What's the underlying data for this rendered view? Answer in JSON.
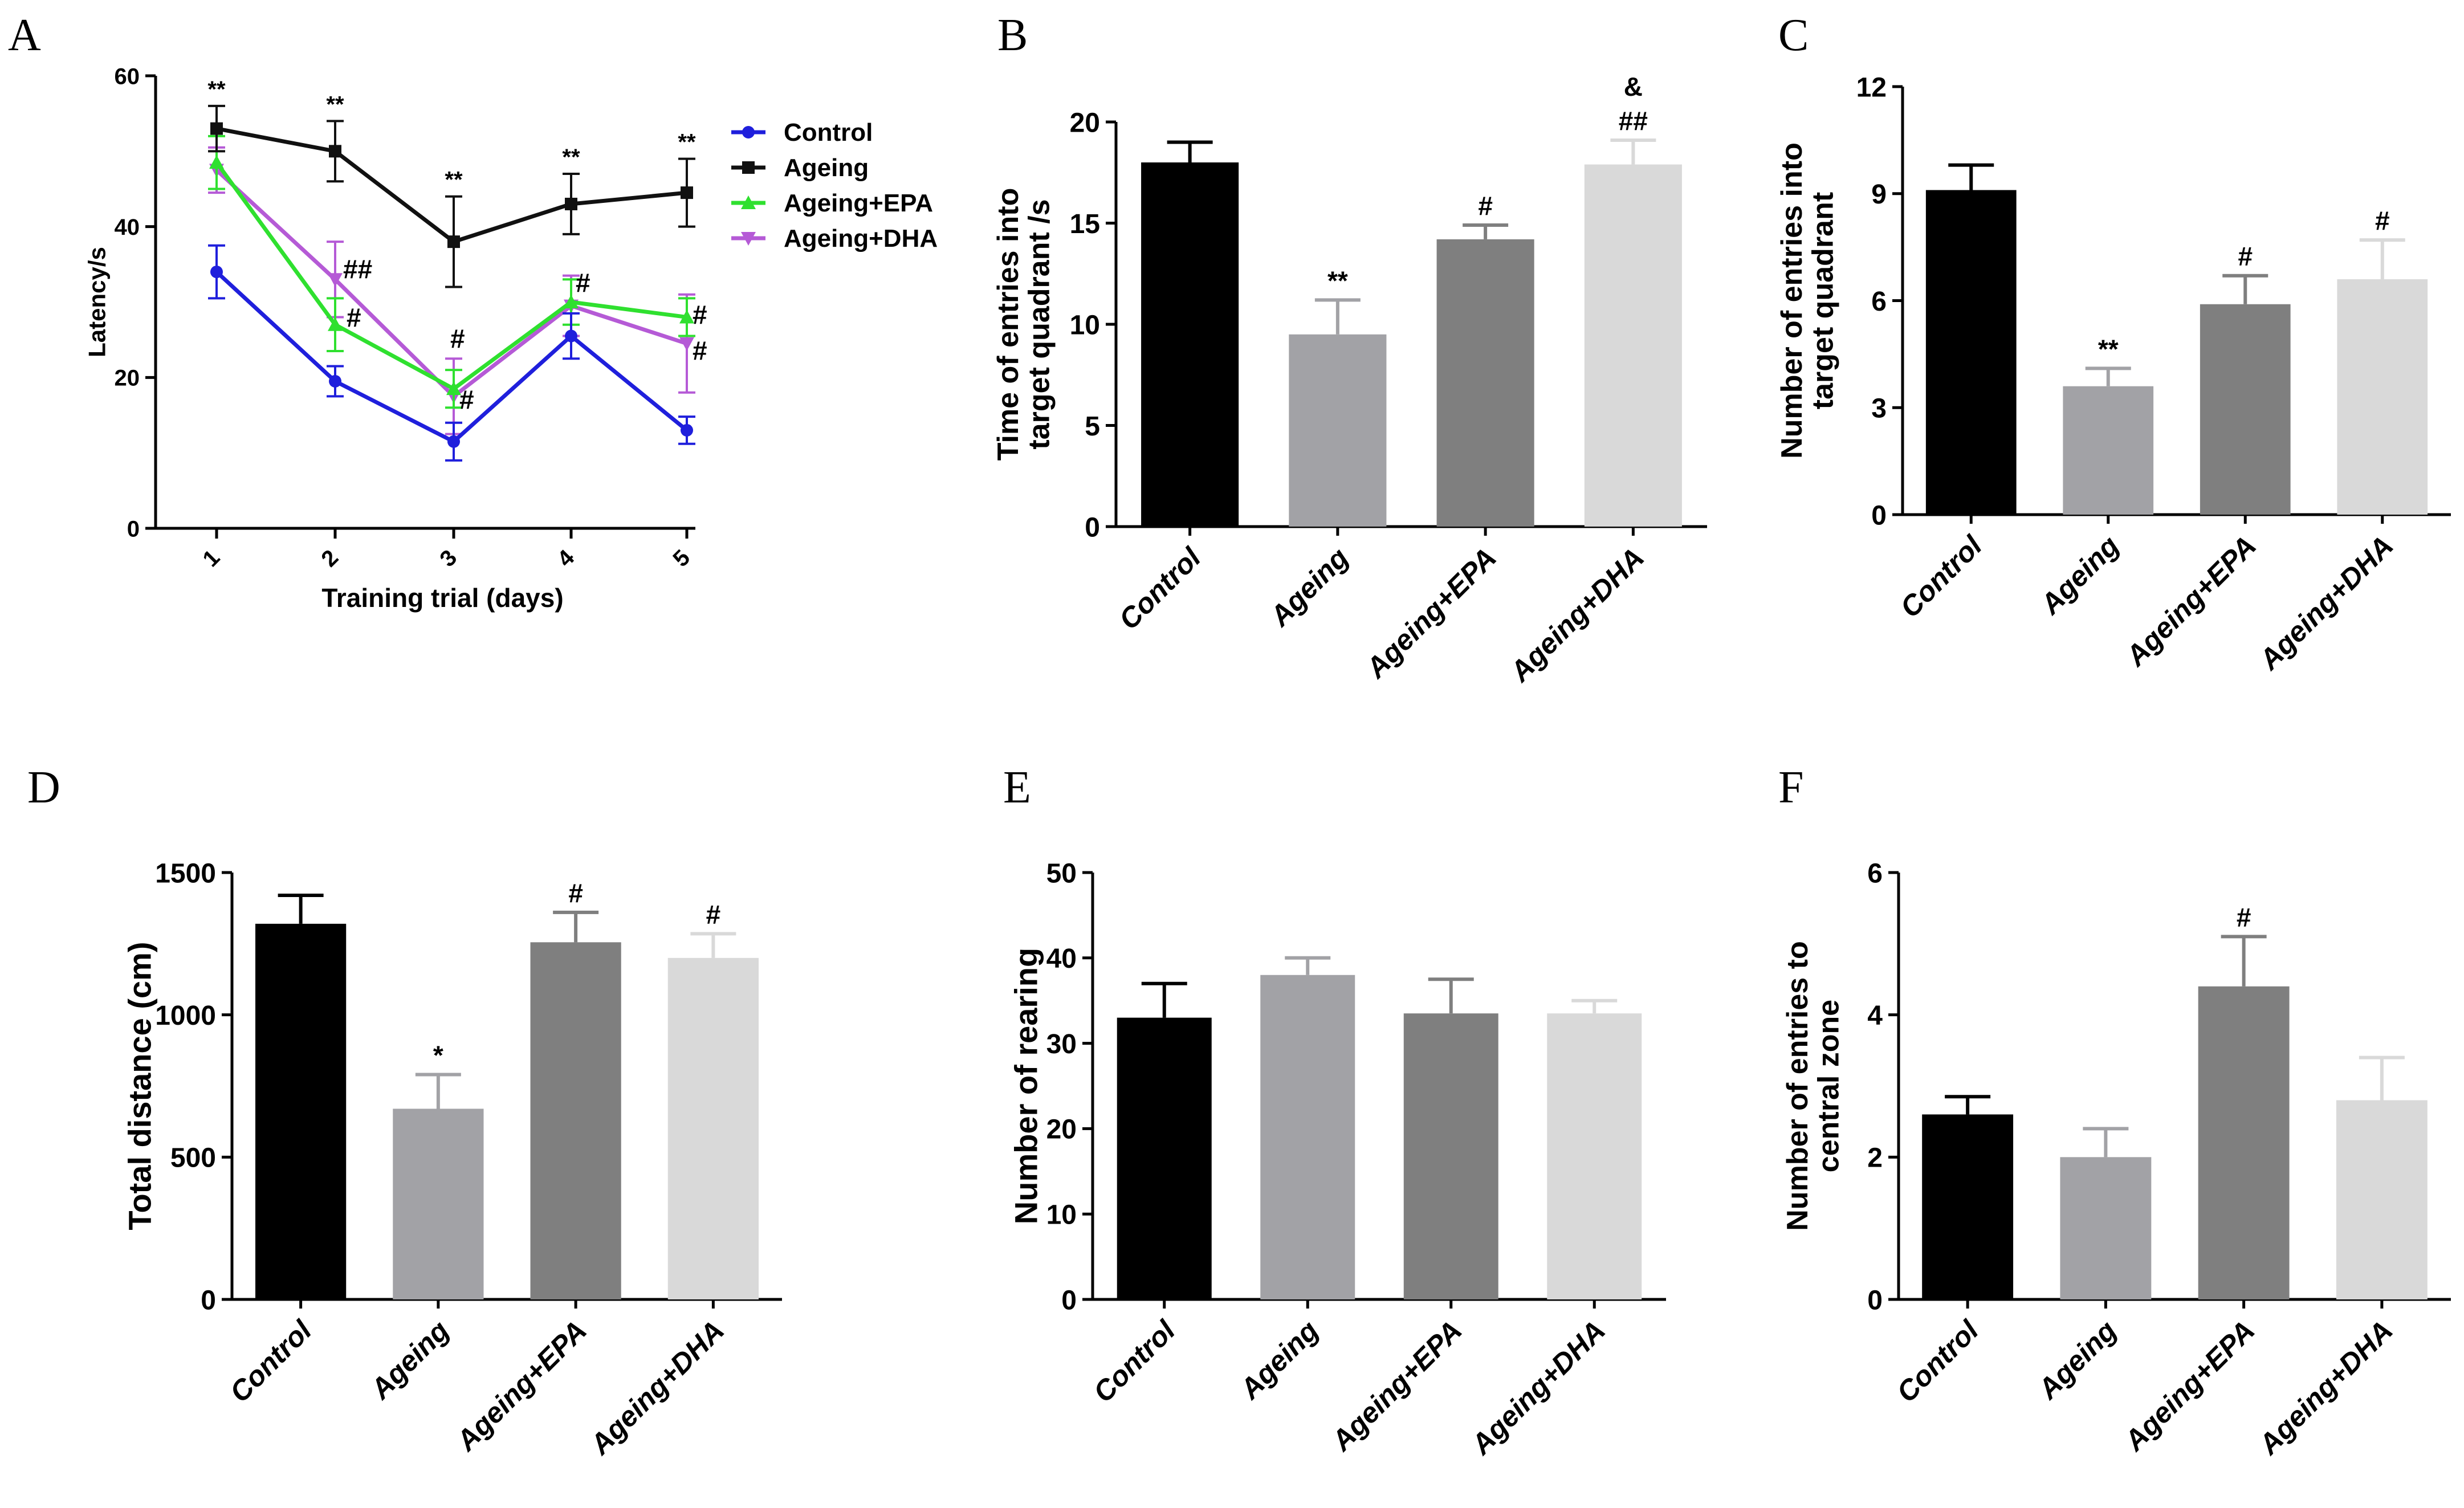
{
  "figure": {
    "background": "#ffffff",
    "panels": [
      "A",
      "B",
      "C",
      "D",
      "E",
      "F"
    ]
  },
  "chart_data": [
    {
      "panel": "A",
      "type": "line",
      "title": "",
      "xlabel": "Training trial (days)",
      "ylabel": "Latency/s",
      "x": [
        1,
        2,
        3,
        4,
        5
      ],
      "xticks": [
        "1",
        "2",
        "3",
        "4",
        "5"
      ],
      "ylim": [
        0,
        60
      ],
      "yticks": [
        0,
        20,
        40,
        60
      ],
      "legend_position": "top-right",
      "series": [
        {
          "name": "Control",
          "color": "#1f1fdc",
          "marker": "circle",
          "values": [
            34,
            19.5,
            11.5,
            25.5,
            13
          ],
          "err": [
            3.5,
            2,
            2.5,
            3,
            1.8
          ],
          "sig": [
            "",
            "",
            "",
            "",
            ""
          ]
        },
        {
          "name": "Ageing",
          "color": "#111111",
          "marker": "square",
          "values": [
            53,
            50,
            38,
            43,
            44.5
          ],
          "err": [
            3,
            4,
            6,
            4,
            4.5
          ],
          "sig": [
            "**",
            "**",
            "**",
            "**",
            "**"
          ]
        },
        {
          "name": "Ageing+EPA",
          "color": "#2fe02f",
          "marker": "triangle-up",
          "values": [
            48.5,
            27,
            18.5,
            30,
            28
          ],
          "err": [
            3.5,
            3.5,
            2.5,
            3,
            2.5
          ],
          "sig": [
            "",
            "#",
            "#",
            "#",
            "#"
          ]
        },
        {
          "name": "Ageing+DHA",
          "color": "#b55ad6",
          "marker": "triangle-down",
          "values": [
            47.5,
            33,
            17.5,
            29.5,
            24.5
          ],
          "err": [
            3,
            5,
            5,
            4,
            6.5
          ],
          "sig": [
            "",
            "##",
            "#",
            "",
            "#"
          ]
        }
      ]
    },
    {
      "panel": "B",
      "type": "bar",
      "ylabel": "Time of entries into target quadrant /s",
      "ylabel_lines": [
        "Time of entries into",
        "target quadrant /s"
      ],
      "categories": [
        "Control",
        "Ageing",
        "Ageing+EPA",
        "Ageing+DHA"
      ],
      "values": [
        18,
        9.5,
        14.2,
        17.9
      ],
      "err": [
        1,
        1.7,
        0.7,
        1.2
      ],
      "sig": [
        "",
        "**",
        "#",
        "##"
      ],
      "sig_extra": [
        "",
        "",
        "",
        "&"
      ],
      "ylim": [
        0,
        20
      ],
      "yticks": [
        0,
        5,
        10,
        15,
        20
      ],
      "colors": [
        "#000000",
        "#a2a2a6",
        "#7f7f7f",
        "#d9d9d9"
      ]
    },
    {
      "panel": "C",
      "type": "bar",
      "ylabel": "Number of entries into target quadrant",
      "ylabel_lines": [
        "Number of entries into",
        "target quadrant"
      ],
      "categories": [
        "Control",
        "Ageing",
        "Ageing+EPA",
        "Ageing+DHA"
      ],
      "values": [
        9.1,
        3.6,
        5.9,
        6.6
      ],
      "err": [
        0.7,
        0.5,
        0.8,
        1.1
      ],
      "sig": [
        "",
        "**",
        "#",
        "#"
      ],
      "sig_extra": [
        "",
        "",
        "",
        ""
      ],
      "ylim": [
        0,
        12
      ],
      "yticks": [
        0,
        3,
        6,
        9,
        12
      ],
      "colors": [
        "#000000",
        "#a2a2a6",
        "#7f7f7f",
        "#d9d9d9"
      ]
    },
    {
      "panel": "D",
      "type": "bar",
      "ylabel": "Total distance (cm)",
      "ylabel_lines": [
        "Total distance (cm)"
      ],
      "categories": [
        "Control",
        "Ageing",
        "Ageing+EPA",
        "Ageing+DHA"
      ],
      "values": [
        1320,
        670,
        1255,
        1200
      ],
      "err": [
        100,
        120,
        105,
        85
      ],
      "sig": [
        "",
        "*",
        "#",
        "#"
      ],
      "sig_extra": [
        "",
        "",
        "",
        ""
      ],
      "ylim": [
        0,
        1500
      ],
      "yticks": [
        0,
        500,
        1000,
        1500
      ],
      "colors": [
        "#000000",
        "#a2a2a6",
        "#7f7f7f",
        "#d9d9d9"
      ]
    },
    {
      "panel": "E",
      "type": "bar",
      "ylabel": "Number of rearing",
      "ylabel_lines": [
        "Number of rearing"
      ],
      "categories": [
        "Control",
        "Ageing",
        "Ageing+EPA",
        "Ageing+DHA"
      ],
      "values": [
        33,
        38,
        33.5,
        33.5
      ],
      "err": [
        4,
        2,
        4,
        1.5
      ],
      "sig": [
        "",
        "",
        "",
        ""
      ],
      "sig_extra": [
        "",
        "",
        "",
        ""
      ],
      "ylim": [
        0,
        50
      ],
      "yticks": [
        0,
        10,
        20,
        30,
        40,
        50
      ],
      "colors": [
        "#000000",
        "#a2a2a6",
        "#7f7f7f",
        "#d9d9d9"
      ]
    },
    {
      "panel": "F",
      "type": "bar",
      "ylabel": "Number of entries to central zone",
      "ylabel_lines": [
        "Number of entries to",
        "central zone"
      ],
      "categories": [
        "Control",
        "Ageing",
        "Ageing+EPA",
        "Ageing+DHA"
      ],
      "values": [
        2.6,
        2.0,
        4.4,
        2.8
      ],
      "err": [
        0.25,
        0.4,
        0.7,
        0.6
      ],
      "sig": [
        "",
        "",
        "#",
        ""
      ],
      "sig_extra": [
        "",
        "",
        "",
        ""
      ],
      "ylim": [
        0,
        6
      ],
      "yticks": [
        0,
        2,
        4,
        6
      ],
      "colors": [
        "#000000",
        "#a2a2a6",
        "#7f7f7f",
        "#d9d9d9"
      ]
    }
  ]
}
